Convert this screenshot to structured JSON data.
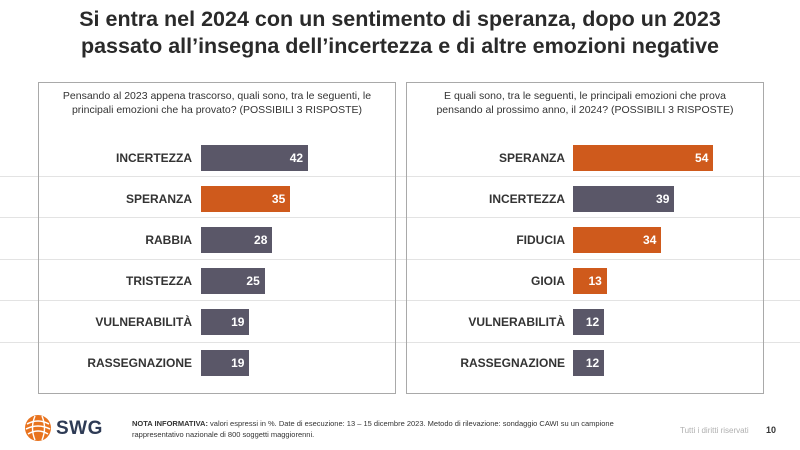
{
  "title_line1": "Si entra nel 2024 con un sentimento di speranza, dopo un 2023",
  "title_line2": "passato all’insegna dell’incertezza e di altre emozioni negative",
  "colors": {
    "dark": "#5a5768",
    "orange": "#cf5a1c"
  },
  "chart_data": [
    {
      "type": "bar",
      "orientation": "horizontal",
      "question_line1": "Pensando al 2023 appena trascorso, quali sono, tra le seguenti, le",
      "question_line2": "principali emozioni che ha provato? (POSSIBILI 3 RISPOSTE)",
      "categories": [
        "INCERTEZZA",
        "SPERANZA",
        "RABBIA",
        "TRISTEZZA",
        "VULNERABILITÀ",
        "RASSEGNAZIONE"
      ],
      "values": [
        42,
        35,
        28,
        25,
        19,
        19
      ],
      "highlight": [
        false,
        true,
        false,
        false,
        false,
        false
      ]
    },
    {
      "type": "bar",
      "orientation": "horizontal",
      "question_line1": "E quali sono, tra le seguenti, le principali emozioni che prova",
      "question_line2": "pensando al prossimo anno, il 2024? (POSSIBILI 3 RISPOSTE)",
      "categories": [
        "SPERANZA",
        "INCERTEZZA",
        "FIDUCIA",
        "GIOIA",
        "VULNERABILITÀ",
        "RASSEGNAZIONE"
      ],
      "values": [
        54,
        39,
        34,
        13,
        12,
        12
      ],
      "highlight": [
        true,
        false,
        true,
        true,
        false,
        false
      ]
    }
  ],
  "footer": {
    "note_label": "NOTA INFORMATIVA:",
    "note_text": " valori espressi in %. Date di esecuzione: 13 – 15 dicembre 2023. Metodo di rilevazione: sondaggio CAWI su un campione rappresentativo nazionale di 800 soggetti maggiorenni.",
    "rights": "Tutti i diritti riservati",
    "page": "10",
    "logo_text": "SWG"
  }
}
